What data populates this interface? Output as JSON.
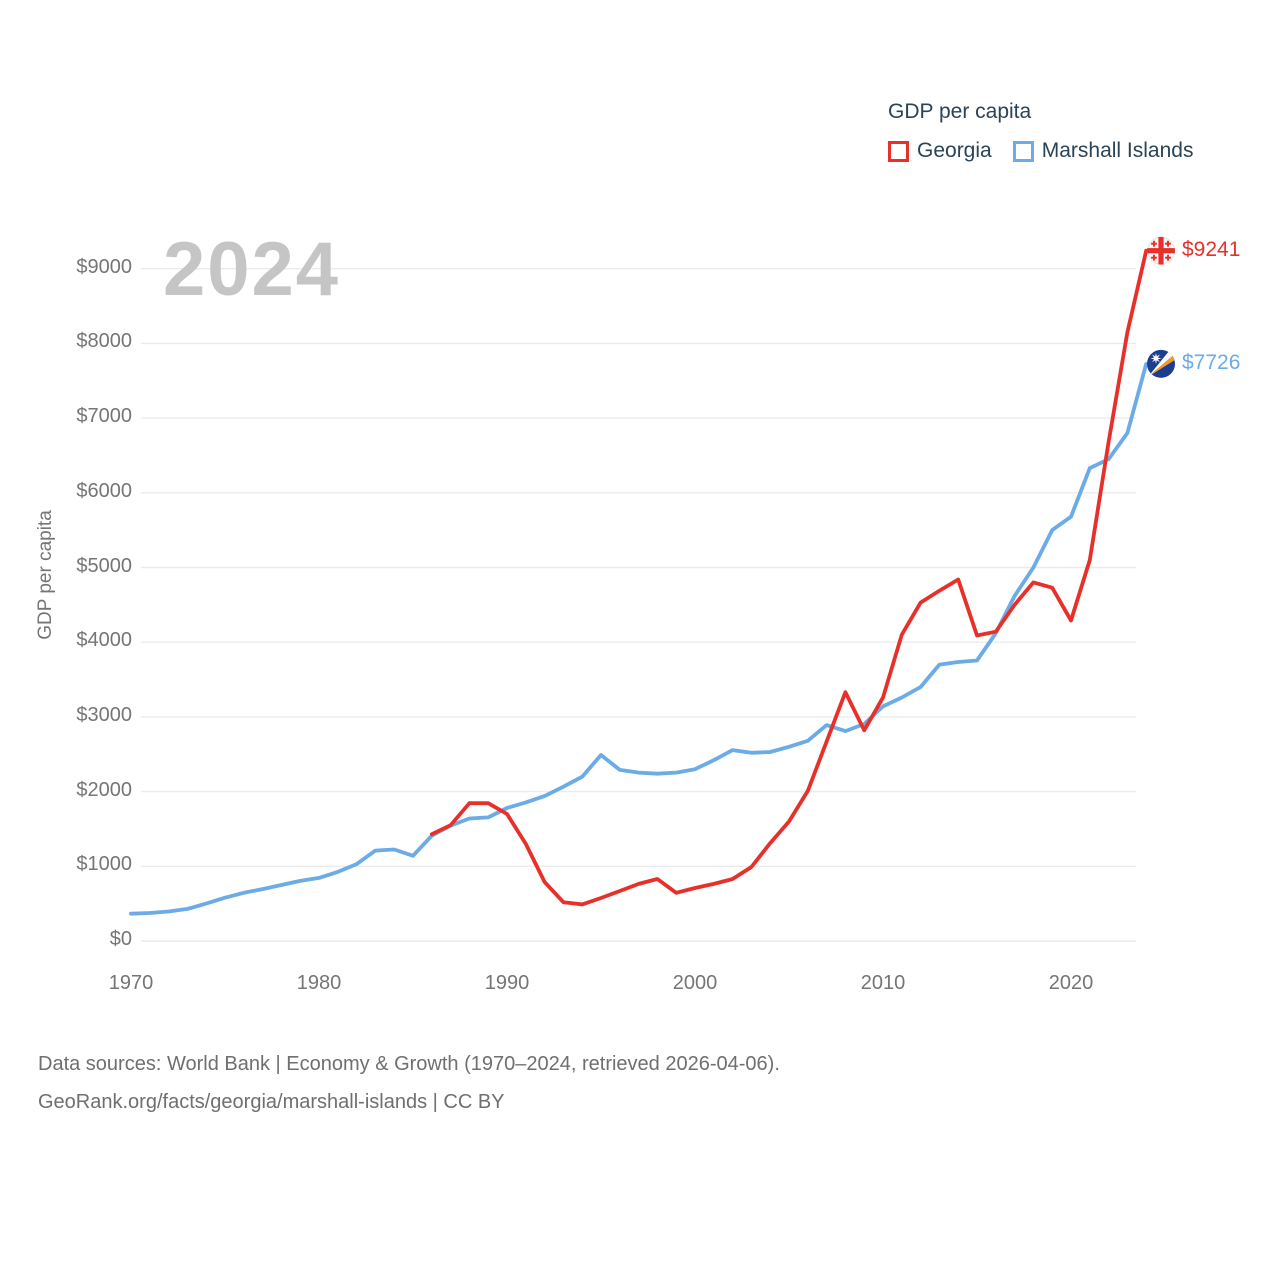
{
  "watermark": "2024",
  "legend": {
    "title": "GDP per capita",
    "items": [
      {
        "label": "Georgia",
        "color": "#e8302a"
      },
      {
        "label": "Marshall Islands",
        "color": "#6aabe8"
      }
    ]
  },
  "chart_data": {
    "type": "line",
    "title": "GDP per capita",
    "ylabel": "GDP per capita",
    "xlabel": "",
    "x_range": [
      1970,
      2024
    ],
    "ylim": [
      0,
      9400
    ],
    "grid": true,
    "legend_position": "top-right",
    "y_ticks": [
      0,
      1000,
      2000,
      3000,
      4000,
      5000,
      6000,
      7000,
      8000,
      9000
    ],
    "y_tick_labels": [
      "$0",
      "$1000",
      "$2000",
      "$3000",
      "$4000",
      "$5000",
      "$6000",
      "$7000",
      "$8000",
      "$9000"
    ],
    "x_ticks": [
      1970,
      1980,
      1990,
      2000,
      2010,
      2020
    ],
    "series": [
      {
        "name": "Georgia",
        "id": "georgia",
        "color": "#e8302a",
        "flag": "georgia",
        "end_label": "$9241",
        "end_value": 9241,
        "start_year": 1986,
        "end_year": 2024,
        "values": [
          1430,
          1550,
          1845,
          1845,
          1700,
          1300,
          790,
          520,
          490,
          575,
          670,
          765,
          830,
          645,
          710,
          765,
          830,
          990,
          1310,
          1600,
          2010,
          2670,
          3330,
          2820,
          3260,
          4100,
          4530,
          4690,
          4840,
          4090,
          4140,
          4500,
          4800,
          4730,
          4290,
          5100,
          6680,
          8150,
          9241
        ]
      },
      {
        "name": "Marshall Islands",
        "id": "marshall-islands",
        "color": "#6aabe8",
        "flag": "marshall-islands",
        "end_label": "$7726",
        "end_value": 7726,
        "start_year": 1970,
        "end_year": 2024,
        "values": [
          365,
          375,
          395,
          430,
          500,
          580,
          645,
          695,
          750,
          805,
          845,
          925,
          1030,
          1210,
          1225,
          1140,
          1410,
          1545,
          1640,
          1655,
          1780,
          1855,
          1940,
          2065,
          2200,
          2490,
          2290,
          2255,
          2240,
          2255,
          2300,
          2420,
          2555,
          2520,
          2530,
          2600,
          2680,
          2890,
          2810,
          2905,
          3140,
          3260,
          3400,
          3700,
          3735,
          3755,
          4120,
          4620,
          5000,
          5500,
          5680,
          6330,
          6450,
          6800,
          7726
        ]
      }
    ],
    "flag_colors": {
      "georgia_red": "#e8302a",
      "marshall_blue": "#1d3d91",
      "marshall_orange": "#f2992e"
    }
  },
  "footer": {
    "line1": "Data sources: World Bank | Economy & Growth (1970–2024, retrieved 2026-04-06).",
    "line2": "GeoRank.org/facts/georgia/marshall-islands | CC BY"
  }
}
